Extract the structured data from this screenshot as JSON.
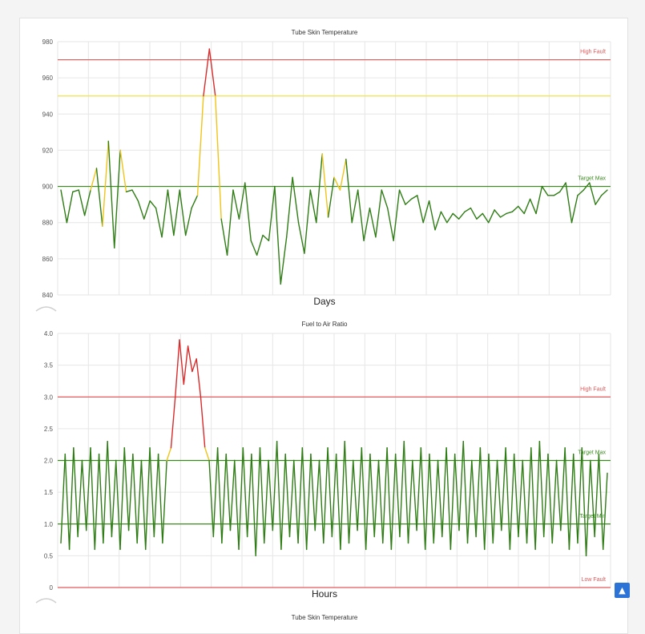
{
  "colors": {
    "grid": "#e6e6e6",
    "high_fault": "#e05a5a",
    "warning": "#f2e24a",
    "target": "#3a8a1e",
    "low_fault": "#e05a5a",
    "line_green": "#2e7d14",
    "line_yellow": "#f0c419",
    "line_red": "#d92b2b",
    "scroll_button": "#2b73d6"
  },
  "scroll_top_icon": "chevron-up-icon",
  "next_chart_title": "Tube Skin Temperature",
  "chart_data": [
    {
      "type": "line",
      "title": "Tube Skin Temperature",
      "xlabel": "Days",
      "ylabel": "",
      "ylim": [
        840,
        980
      ],
      "yticks": [
        "840",
        "860",
        "880",
        "900",
        "920",
        "940",
        "960",
        "980"
      ],
      "grid": true,
      "thresholds": [
        {
          "name": "High Fault",
          "value": 970,
          "color": "#e05a5a"
        },
        {
          "name": "",
          "value": 950,
          "color": "#f2e24a"
        },
        {
          "name": "Target Max",
          "value": 900,
          "color": "#3a8a1e"
        }
      ],
      "series": [
        {
          "values": [
            898,
            880,
            897,
            898,
            884,
            898,
            910,
            878,
            925,
            866,
            920,
            897,
            898,
            892,
            882,
            892,
            888,
            872,
            898,
            873,
            898,
            873,
            888,
            895,
            950,
            976,
            950,
            882,
            862,
            898,
            882,
            902,
            870,
            862,
            873,
            870,
            900,
            846,
            872,
            905,
            880,
            863,
            898,
            880,
            918,
            883,
            905,
            898,
            915,
            880,
            898,
            870,
            888,
            872,
            898,
            888,
            870,
            898,
            890,
            893,
            895,
            880,
            892,
            876,
            886,
            880,
            885,
            882,
            886,
            888,
            882,
            885,
            880,
            887,
            883,
            885,
            886,
            889,
            885,
            893,
            885,
            900,
            895,
            895,
            897,
            902,
            880,
            895,
            898,
            902,
            890,
            895,
            898
          ]
        }
      ]
    },
    {
      "type": "line",
      "title": "Fuel to Air Ratio",
      "xlabel": "Hours",
      "ylabel": "",
      "ylim": [
        0,
        4.0
      ],
      "yticks": [
        "0",
        "0.5",
        "1.0",
        "1.5",
        "2.0",
        "2.5",
        "3.0",
        "3.5",
        "4.0"
      ],
      "grid": true,
      "thresholds": [
        {
          "name": "High Fault",
          "value": 3.0,
          "color": "#e05a5a"
        },
        {
          "name": "Target Max",
          "value": 2.0,
          "color": "#3a8a1e"
        },
        {
          "name": "Target Min",
          "value": 1.0,
          "color": "#3a8a1e"
        },
        {
          "name": "Low Fault",
          "value": 0.0,
          "color": "#e05a5a"
        }
      ],
      "series": [
        {
          "values": [
            0.7,
            2.1,
            0.6,
            2.2,
            0.8,
            2.0,
            0.9,
            2.2,
            0.6,
            2.1,
            0.7,
            2.3,
            0.8,
            2.0,
            0.6,
            2.2,
            0.9,
            2.1,
            0.7,
            2.0,
            0.6,
            2.2,
            0.8,
            2.1,
            0.7,
            2.0,
            2.2,
            3.0,
            3.9,
            3.2,
            3.8,
            3.4,
            3.6,
            3.0,
            2.2,
            2.0,
            0.8,
            2.2,
            0.7,
            2.1,
            0.9,
            2.0,
            0.6,
            2.2,
            0.8,
            2.1,
            0.5,
            2.2,
            0.7,
            2.0,
            0.9,
            2.3,
            0.6,
            2.1,
            0.8,
            2.0,
            0.7,
            2.2,
            0.6,
            2.1,
            0.9,
            2.0,
            0.7,
            2.2,
            0.8,
            2.1,
            0.6,
            2.3,
            0.7,
            2.0,
            0.9,
            2.2,
            0.6,
            2.1,
            0.8,
            2.0,
            0.7,
            2.2,
            0.6,
            2.1,
            0.8,
            2.3,
            0.7,
            2.0,
            0.9,
            2.2,
            0.6,
            2.1,
            0.7,
            2.0,
            0.8,
            2.2,
            0.6,
            2.1,
            0.9,
            2.3,
            0.7,
            2.0,
            0.8,
            2.2,
            0.6,
            2.1,
            0.7,
            2.0,
            0.9,
            2.2,
            0.6,
            2.1,
            0.8,
            2.0,
            0.7,
            2.2,
            0.6,
            2.3,
            0.8,
            2.1,
            0.7,
            2.0,
            0.9,
            2.2,
            0.6,
            2.1,
            0.7,
            2.2,
            0.5,
            2.0,
            0.8,
            2.1,
            0.6,
            1.8
          ]
        }
      ]
    }
  ]
}
